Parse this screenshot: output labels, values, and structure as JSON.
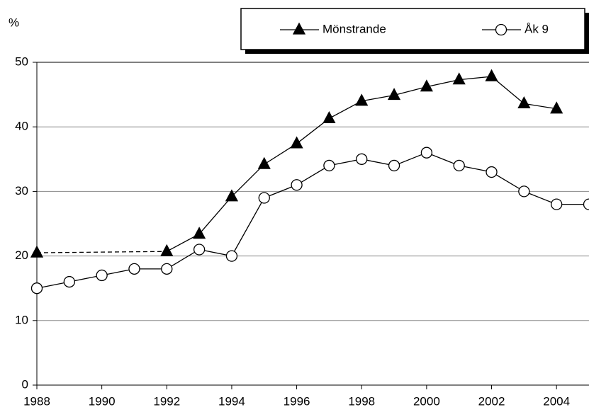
{
  "chart_data": {
    "type": "line",
    "y_label": "%",
    "x": [
      1988,
      1989,
      1990,
      1991,
      1992,
      1993,
      1994,
      1995,
      1996,
      1997,
      1998,
      1999,
      2000,
      2001,
      2002,
      2003,
      2004,
      2005
    ],
    "series": [
      {
        "name": "Mönstrande",
        "color": "#000000",
        "marker": "triangle",
        "values": [
          20.5,
          null,
          null,
          null,
          20.7,
          23.4,
          29.2,
          34.2,
          37.4,
          41.3,
          44.0,
          44.9,
          46.2,
          47.3,
          47.8,
          43.6,
          42.8,
          null
        ]
      },
      {
        "name": "Åk 9",
        "color": "#000000",
        "marker": "circle",
        "values": [
          15,
          16,
          17,
          18,
          18,
          21,
          20,
          29,
          31,
          34,
          35,
          34,
          36,
          34,
          33,
          30,
          28,
          28
        ]
      }
    ],
    "xlim": [
      1988,
      2005
    ],
    "xticks": [
      1988,
      1990,
      1992,
      1994,
      1996,
      1998,
      2000,
      2002,
      2004
    ],
    "ylim": [
      0,
      50
    ],
    "yticks": [
      0,
      10,
      20,
      30,
      40,
      50
    ],
    "grid": true
  }
}
